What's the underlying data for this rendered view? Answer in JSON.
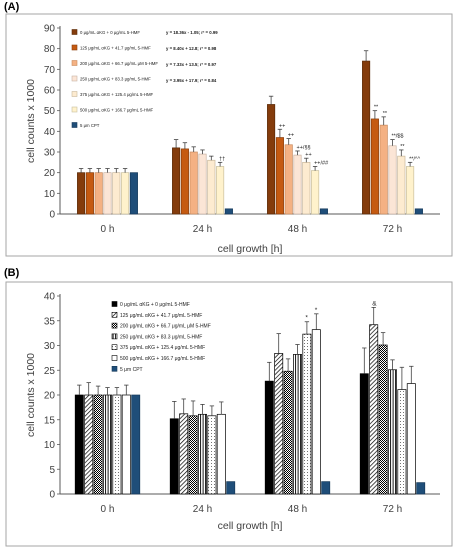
{
  "panels": [
    {
      "label": "(A)",
      "legend": [
        "0 μg/mL αKG + 0 μg/mL 5-HMF",
        "125 μg/mL αKG + 41.7 μg/mL 5-HMF",
        "200 μg/mL αKG + 66.7 μg/mL μM 5-HMF",
        "250 μg/mL αKG + 83.3 μg/mL 5-HMF",
        "375 μg/mL αKG + 125.4 μg/mL 5-HMF",
        "500 μg/mL αKG + 166.7 μg/mL 5-HMF",
        "5 μm CPT"
      ],
      "equations": [
        "y = 18.36x - 1.05; r² = 0.99",
        "y = 8.40x + 12.8; r² = 0.98",
        "y = 7.33x + 13.5; r² = 0.97",
        "y = 3.95x + 17.9; r² = 0.84"
      ]
    },
    {
      "label": "(B)",
      "legend": [
        "0 μg/mL αKG + 0 μg/mL 5-HMF",
        "125 μg/mL αKG + 41.7 μg/mL 5-HMF",
        "200 μg/mL αKG + 66.7 μg/mL μM 5-HMF",
        "250 μg/mL αKG + 83.3 μg/mL 5-HMF",
        "375 μg/mL αKG + 125.4 μg/mL 5-HMF",
        "500 μg/mL αKG + 166.7 μg/mL 5-HMF",
        "5 μm CPT"
      ],
      "equations": []
    }
  ],
  "colors": {
    "A": [
      "#843c0c",
      "#c55a11",
      "#f4b183",
      "#fbe5d6",
      "#fdebd0",
      "#fff2cc",
      "#1f4e79"
    ],
    "B_cpt": "#1f4e79"
  },
  "chart_data": [
    {
      "type": "bar",
      "categories": [
        "0 h",
        "24 h",
        "48 h",
        "72 h"
      ],
      "xlabel": "cell growth [h]",
      "ylabel": "cell counts x 1000",
      "ylim": [
        0,
        90
      ],
      "yticks": [
        0,
        10,
        20,
        30,
        40,
        50,
        60,
        70,
        80,
        90
      ],
      "grid": false,
      "legend_position": "top-left",
      "series": [
        {
          "name": "0 μg/mL αKG + 0 μg/mL 5-HMF",
          "values": [
            20,
            32,
            53,
            74
          ],
          "errors": [
            2,
            4,
            4,
            5
          ]
        },
        {
          "name": "125 μg/mL αKG + 41.7 μg/mL 5-HMF",
          "values": [
            20,
            31.5,
            37,
            46
          ],
          "errors": [
            2,
            3,
            4,
            4
          ]
        },
        {
          "name": "200 μg/mL αKG + 66.7 μg/mL μM 5-HMF",
          "values": [
            20,
            30,
            33.5,
            43
          ],
          "errors": [
            2,
            2.5,
            3,
            4
          ]
        },
        {
          "name": "250 μg/mL αKG + 83.3 μg/mL 5-HMF",
          "values": [
            20,
            29,
            28.5,
            33
          ],
          "errors": [
            2,
            2,
            2,
            3
          ]
        },
        {
          "name": "375 μg/mL αKG + 125.4 μg/mL 5-HMF",
          "values": [
            20,
            26,
            25,
            28
          ],
          "errors": [
            2,
            2,
            2,
            3
          ]
        },
        {
          "name": "500 μg/mL αKG + 166.7 μg/mL 5-HMF",
          "values": [
            20,
            23,
            21,
            23
          ],
          "errors": [
            2,
            2,
            2,
            2
          ]
        },
        {
          "name": "5 μm CPT",
          "values": [
            20,
            2.5,
            2.5,
            2.5
          ],
          "errors": [
            0,
            0,
            0,
            0
          ]
        }
      ],
      "annotations": [
        {
          "category": "24 h",
          "series": 5,
          "text": "††"
        },
        {
          "category": "48 h",
          "series": 1,
          "text": "++"
        },
        {
          "category": "48 h",
          "series": 2,
          "text": "++"
        },
        {
          "category": "48 h",
          "series": 3,
          "text": "++/§§"
        },
        {
          "category": "48 h",
          "series": 4,
          "text": "++"
        },
        {
          "category": "48 h",
          "series": 5,
          "text": "++/##"
        },
        {
          "category": "72 h",
          "series": 1,
          "text": "**"
        },
        {
          "category": "72 h",
          "series": 2,
          "text": "**"
        },
        {
          "category": "72 h",
          "series": 3,
          "text": "**/$$"
        },
        {
          "category": "72 h",
          "series": 4,
          "text": "**"
        },
        {
          "category": "72 h",
          "series": 5,
          "text": "**/^^"
        }
      ]
    },
    {
      "type": "bar",
      "categories": [
        "0 h",
        "24 h",
        "48 h",
        "72 h"
      ],
      "xlabel": "cell growth [h]",
      "ylabel": "cell counts x 1000",
      "ylim": [
        0,
        40
      ],
      "yticks": [
        0,
        5,
        10,
        15,
        20,
        25,
        30,
        35,
        40
      ],
      "grid": false,
      "legend_position": "top-left",
      "series": [
        {
          "name": "0 μg/mL αKG + 0 μg/mL 5-HMF",
          "values": [
            20,
            15.2,
            22.8,
            24.3
          ],
          "errors": [
            2,
            3.5,
            3.8,
            5.2
          ]
        },
        {
          "name": "125 μg/mL αKG + 41.7 μg/mL 5-HMF",
          "values": [
            20,
            16.2,
            28.4,
            34.2
          ],
          "errors": [
            2.5,
            3,
            4,
            3.5
          ]
        },
        {
          "name": "200 μg/mL αKG + 66.7 μg/mL μM 5-HMF",
          "values": [
            20,
            15.8,
            24.8,
            30.1
          ],
          "errors": [
            1.8,
            3,
            2.5,
            2.5
          ]
        },
        {
          "name": "250 μg/mL αKG + 83.3 μg/mL 5-HMF",
          "values": [
            20,
            16.1,
            28.2,
            25.1
          ],
          "errors": [
            1.5,
            2,
            2,
            2
          ]
        },
        {
          "name": "375 μg/mL αKG + 125.4 μg/mL 5-HMF",
          "values": [
            20,
            15.8,
            32.3,
            21.1
          ],
          "errors": [
            1.5,
            2,
            2.5,
            4.5
          ]
        },
        {
          "name": "500 μg/mL αKG + 166.7 μg/mL 5-HMF",
          "values": [
            20,
            16.1,
            33.2,
            22.3
          ],
          "errors": [
            2,
            2.5,
            3.2,
            3.5
          ]
        },
        {
          "name": "5 μm CPT",
          "values": [
            20,
            2.5,
            2.5,
            2.3
          ],
          "errors": [
            0,
            0,
            0,
            0
          ]
        }
      ],
      "annotations": [
        {
          "category": "48 h",
          "series": 4,
          "text": "*"
        },
        {
          "category": "48 h",
          "series": 5,
          "text": "*"
        },
        {
          "category": "72 h",
          "series": 1,
          "text": "&"
        }
      ]
    }
  ]
}
